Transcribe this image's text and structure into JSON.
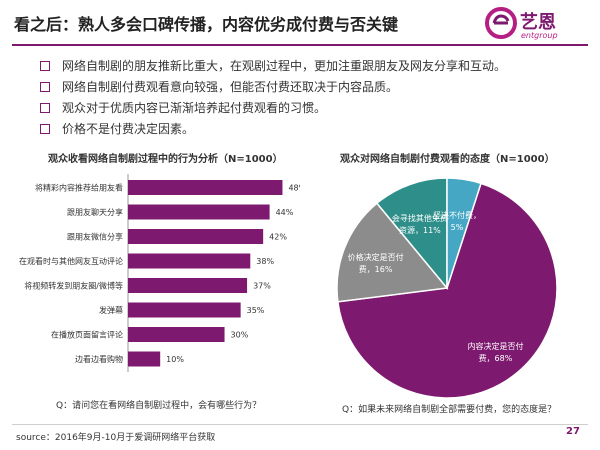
{
  "header": {
    "title": "看之后：熟人多会口碑传播，内容优劣成付费与否关键",
    "logo_text": "艺恩",
    "logo_sub": "entgroup"
  },
  "bullets": [
    "网络自制剧的朋友推新比重大，在观剧过程中，更加注重跟朋友及网友分享和互动。",
    "网络自制剧付费观看意向较强，但能否付费还取决于内容品质。",
    "观众对于优质内容已渐渐培养起付费观看的习惯。",
    "价格不是付费决定因素。"
  ],
  "colors": {
    "accent": "#7d1a6f",
    "bar": "#7d1a6f",
    "pie": [
      "#7d1a6f",
      "#8c8c8c",
      "#2e8f8a",
      "#45a7c4"
    ]
  },
  "chart_data": [
    {
      "type": "bar",
      "orientation": "horizontal",
      "title": "观众收看网络自制剧过程中的行为分析（N=1000）",
      "categories": [
        "将精彩内容推荐给朋友看",
        "跟朋友聊天分享",
        "跟朋友微信分享",
        "在观看时与其他网友互动评论",
        "将视频转发到朋友圈/微博等",
        "发弹幕",
        "在播放页面留言评论",
        "边看边看购物"
      ],
      "values": [
        48,
        44,
        42,
        38,
        37,
        35,
        30,
        10
      ],
      "value_labels": [
        "48%",
        "44%",
        "42%",
        "38%",
        "37%",
        "35%",
        "30%",
        "10%"
      ],
      "xlim": [
        0,
        55
      ],
      "grid": false,
      "question": "Q：请问您在看网络自制剧过程中，会有哪些行为？"
    },
    {
      "type": "pie",
      "title": "观众对网络自制剧付费观看的态度（N=1000）",
      "slices": [
        {
          "label_line1": "内容决定是否付",
          "label_line2": "费，68%",
          "value": 68
        },
        {
          "label_line1": "价格决定是否付",
          "label_line2": "费，16%",
          "value": 16
        },
        {
          "label_line1": "会寻找其他免费",
          "label_line2": "资源，11%",
          "value": 11
        },
        {
          "label_line1": "坚决不付费，",
          "label_line2": "5%",
          "value": 5
        }
      ],
      "question": "Q：如果未来网络自制剧全部需要付费，您的态度是？"
    }
  ],
  "footer": {
    "source": "source：2016年9月-10月于爱调研网络平台获取",
    "page": "27"
  }
}
